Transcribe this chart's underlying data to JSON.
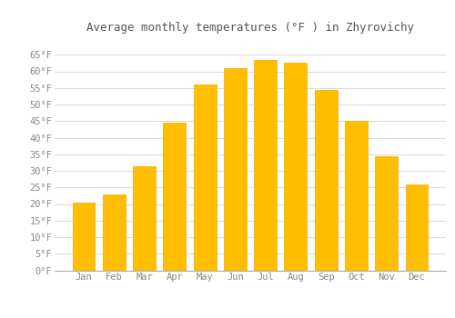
{
  "title": "Average monthly temperatures (°F ) in Zhyrovichy",
  "months": [
    "Jan",
    "Feb",
    "Mar",
    "Apr",
    "May",
    "Jun",
    "Jul",
    "Aug",
    "Sep",
    "Oct",
    "Nov",
    "Dec"
  ],
  "values": [
    20.5,
    23.0,
    31.5,
    44.5,
    56.0,
    61.0,
    63.5,
    62.5,
    54.5,
    45.0,
    34.5,
    26.0
  ],
  "bar_color": "#FFBF00",
  "bar_edge_color": "#F5A800",
  "background_color": "#FFFFFF",
  "grid_color": "#CCCCCC",
  "text_color": "#888888",
  "ylim": [
    0,
    70
  ],
  "yticks": [
    0,
    5,
    10,
    15,
    20,
    25,
    30,
    35,
    40,
    45,
    50,
    55,
    60,
    65
  ],
  "title_fontsize": 9,
  "tick_fontsize": 7.5,
  "font_family": "monospace"
}
